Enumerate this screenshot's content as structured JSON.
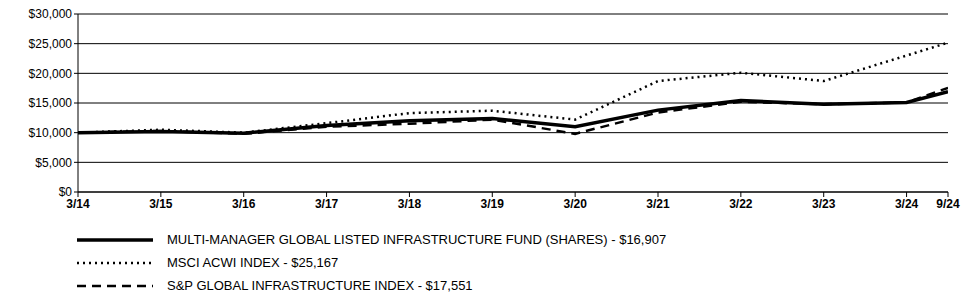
{
  "chart_data": {
    "type": "line",
    "x": [
      2014,
      2015,
      2016,
      2017,
      2018,
      2019,
      2020,
      2021,
      2022,
      2023,
      2024,
      2024.5
    ],
    "xlim": [
      2014,
      2024.5
    ],
    "xticks": [
      {
        "value": 2014,
        "label": "3/14"
      },
      {
        "value": 2015,
        "label": "3/15"
      },
      {
        "value": 2016,
        "label": "3/16"
      },
      {
        "value": 2017,
        "label": "3/17"
      },
      {
        "value": 2018,
        "label": "3/18"
      },
      {
        "value": 2019,
        "label": "3/19"
      },
      {
        "value": 2020,
        "label": "3/20"
      },
      {
        "value": 2021,
        "label": "3/21"
      },
      {
        "value": 2022,
        "label": "3/22"
      },
      {
        "value": 2023,
        "label": "3/23"
      },
      {
        "value": 2024,
        "label": "3/24"
      },
      {
        "value": 2024.5,
        "label": "9/24"
      }
    ],
    "ylim": [
      0,
      30000
    ],
    "yticks": [
      {
        "value": 0,
        "label": "$0"
      },
      {
        "value": 5000,
        "label": "$5,000"
      },
      {
        "value": 10000,
        "label": "$10,000"
      },
      {
        "value": 15000,
        "label": "$15,000"
      },
      {
        "value": 20000,
        "label": "$20,000"
      },
      {
        "value": 25000,
        "label": "$25,000"
      },
      {
        "value": 30000,
        "label": "$30,000"
      }
    ],
    "grid": true,
    "series": [
      {
        "name": "MULTI-MANAGER GLOBAL LISTED INFRASTRUCTURE FUND (SHARES) - $16,907",
        "color": "#000000",
        "line_style": "solid",
        "values": [
          10000,
          10200,
          9900,
          11200,
          12000,
          12400,
          11000,
          13800,
          15400,
          14800,
          15100,
          16907
        ]
      },
      {
        "name": "MSCI ACWI INDEX - $25,167",
        "color": "#000000",
        "line_style": "dotted",
        "values": [
          10000,
          10500,
          10000,
          11600,
          13300,
          13700,
          12200,
          18700,
          20100,
          18700,
          23000,
          25167
        ]
      },
      {
        "name": "S&P GLOBAL INFRASTRUCTURE INDEX - $17,551",
        "color": "#000000",
        "line_style": "dashed",
        "values": [
          10000,
          10300,
          9800,
          11000,
          11500,
          12200,
          9800,
          13400,
          15200,
          14800,
          15100,
          17551
        ]
      }
    ]
  }
}
